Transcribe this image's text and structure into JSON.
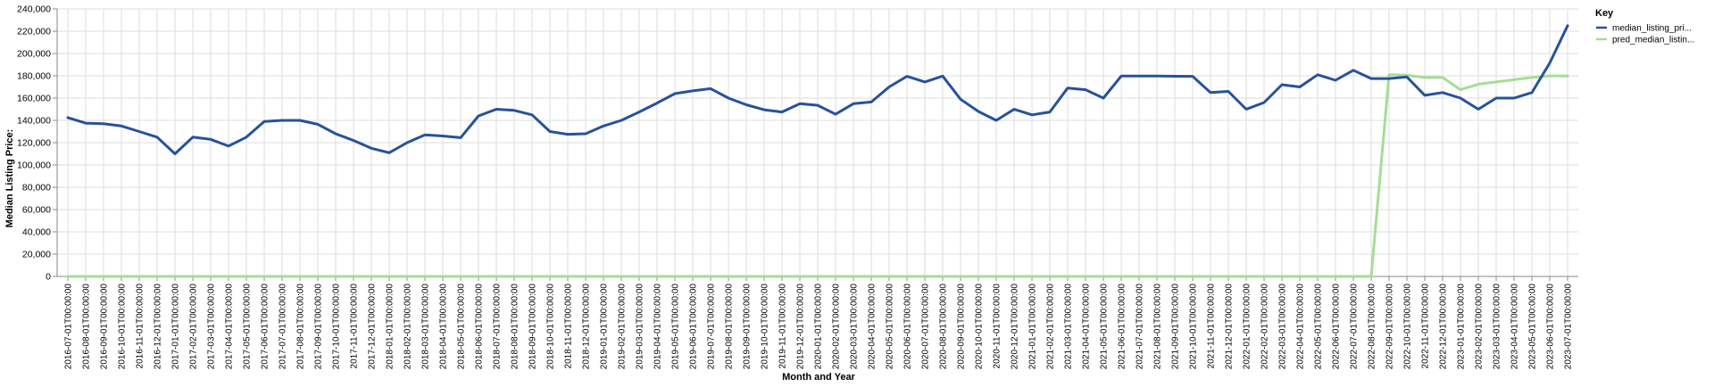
{
  "chart_data": {
    "type": "line",
    "xlabel": "Month and Year",
    "ylabel": "Median Listing Price:",
    "ylim": [
      0,
      240000
    ],
    "y_ticks": [
      "0",
      "20,000",
      "40,000",
      "60,000",
      "80,000",
      "100,000",
      "120,000",
      "140,000",
      "160,000",
      "180,000",
      "200,000",
      "220,000",
      "240,000"
    ],
    "grid": true,
    "legend": {
      "title": "Key",
      "placement": "right"
    },
    "x": [
      "2016-07-01T00:00:00",
      "2016-08-01T00:00:00",
      "2016-09-01T00:00:00",
      "2016-10-01T00:00:00",
      "2016-11-01T00:00:00",
      "2016-12-01T00:00:00",
      "2017-01-01T00:00:00",
      "2017-02-01T00:00:00",
      "2017-03-01T00:00:00",
      "2017-04-01T00:00:00",
      "2017-05-01T00:00:00",
      "2017-06-01T00:00:00",
      "2017-07-01T00:00:00",
      "2017-08-01T00:00:00",
      "2017-09-01T00:00:00",
      "2017-10-01T00:00:00",
      "2017-11-01T00:00:00",
      "2017-12-01T00:00:00",
      "2018-01-01T00:00:00",
      "2018-02-01T00:00:00",
      "2018-03-01T00:00:00",
      "2018-04-01T00:00:00",
      "2018-05-01T00:00:00",
      "2018-06-01T00:00:00",
      "2018-07-01T00:00:00",
      "2018-08-01T00:00:00",
      "2018-09-01T00:00:00",
      "2018-10-01T00:00:00",
      "2018-11-01T00:00:00",
      "2018-12-01T00:00:00",
      "2019-01-01T00:00:00",
      "2019-02-01T00:00:00",
      "2019-03-01T00:00:00",
      "2019-04-01T00:00:00",
      "2019-05-01T00:00:00",
      "2019-06-01T00:00:00",
      "2019-07-01T00:00:00",
      "2019-08-01T00:00:00",
      "2019-09-01T00:00:00",
      "2019-10-01T00:00:00",
      "2019-11-01T00:00:00",
      "2019-12-01T00:00:00",
      "2020-01-01T00:00:00",
      "2020-02-01T00:00:00",
      "2020-03-01T00:00:00",
      "2020-04-01T00:00:00",
      "2020-05-01T00:00:00",
      "2020-06-01T00:00:00",
      "2020-07-01T00:00:00",
      "2020-08-01T00:00:00",
      "2020-09-01T00:00:00",
      "2020-10-01T00:00:00",
      "2020-11-01T00:00:00",
      "2020-12-01T00:00:00",
      "2021-01-01T00:00:00",
      "2021-02-01T00:00:00",
      "2021-03-01T00:00:00",
      "2021-04-01T00:00:00",
      "2021-05-01T00:00:00",
      "2021-06-01T00:00:00",
      "2021-07-01T00:00:00",
      "2021-08-01T00:00:00",
      "2021-09-01T00:00:00",
      "2021-10-01T00:00:00",
      "2021-11-01T00:00:00",
      "2021-12-01T00:00:00",
      "2022-01-01T00:00:00",
      "2022-02-01T00:00:00",
      "2022-03-01T00:00:00",
      "2022-04-01T00:00:00",
      "2022-05-01T00:00:00",
      "2022-06-01T00:00:00",
      "2022-07-01T00:00:00",
      "2022-08-01T00:00:00",
      "2022-09-01T00:00:00",
      "2022-10-01T00:00:00",
      "2022-11-01T00:00:00",
      "2022-12-01T00:00:00",
      "2023-01-01T00:00:00",
      "2023-02-01T00:00:00",
      "2023-03-01T00:00:00",
      "2023-04-01T00:00:00",
      "2023-05-01T00:00:00",
      "2023-06-01T00:00:00",
      "2023-07-01T00:00:00"
    ],
    "series": [
      {
        "name": "median_listing_pri...",
        "color": "#27529b",
        "values": [
          142500,
          137500,
          137000,
          135000,
          130000,
          125000,
          110000,
          125000,
          123000,
          117000,
          125000,
          139000,
          140000,
          140000,
          136500,
          128000,
          122000,
          115000,
          111000,
          120000,
          127000,
          126000,
          124500,
          144000,
          150000,
          149000,
          145000,
          130000,
          127500,
          128000,
          135000,
          140000,
          147500,
          155500,
          164000,
          166500,
          168500,
          160000,
          154000,
          149500,
          147500,
          155000,
          153500,
          145500,
          155000,
          156500,
          170000,
          179500,
          174500,
          179800,
          159000,
          148000,
          140000,
          150000,
          145000,
          147500,
          169000,
          167500,
          160000,
          179800,
          179800,
          179800,
          179600,
          179500,
          165000,
          166000,
          150000,
          156000,
          172000,
          170000,
          181000,
          176000,
          185000,
          177500,
          177500,
          179000,
          162500,
          165000,
          160000,
          150000,
          160000,
          160000,
          165000,
          191500,
          225000
        ]
      },
      {
        "name": "pred_median_listin...",
        "color": "#a5dd97",
        "values": [
          0,
          0,
          0,
          0,
          0,
          0,
          0,
          0,
          0,
          0,
          0,
          0,
          0,
          0,
          0,
          0,
          0,
          0,
          0,
          0,
          0,
          0,
          0,
          0,
          0,
          0,
          0,
          0,
          0,
          0,
          0,
          0,
          0,
          0,
          0,
          0,
          0,
          0,
          0,
          0,
          0,
          0,
          0,
          0,
          0,
          0,
          0,
          0,
          0,
          0,
          0,
          0,
          0,
          0,
          0,
          0,
          0,
          0,
          0,
          0,
          0,
          0,
          0,
          0,
          0,
          0,
          0,
          0,
          0,
          0,
          0,
          0,
          0,
          0,
          181000,
          180500,
          178500,
          178500,
          167500,
          172500,
          174500,
          176500,
          178500,
          180000,
          179800
        ]
      }
    ]
  }
}
